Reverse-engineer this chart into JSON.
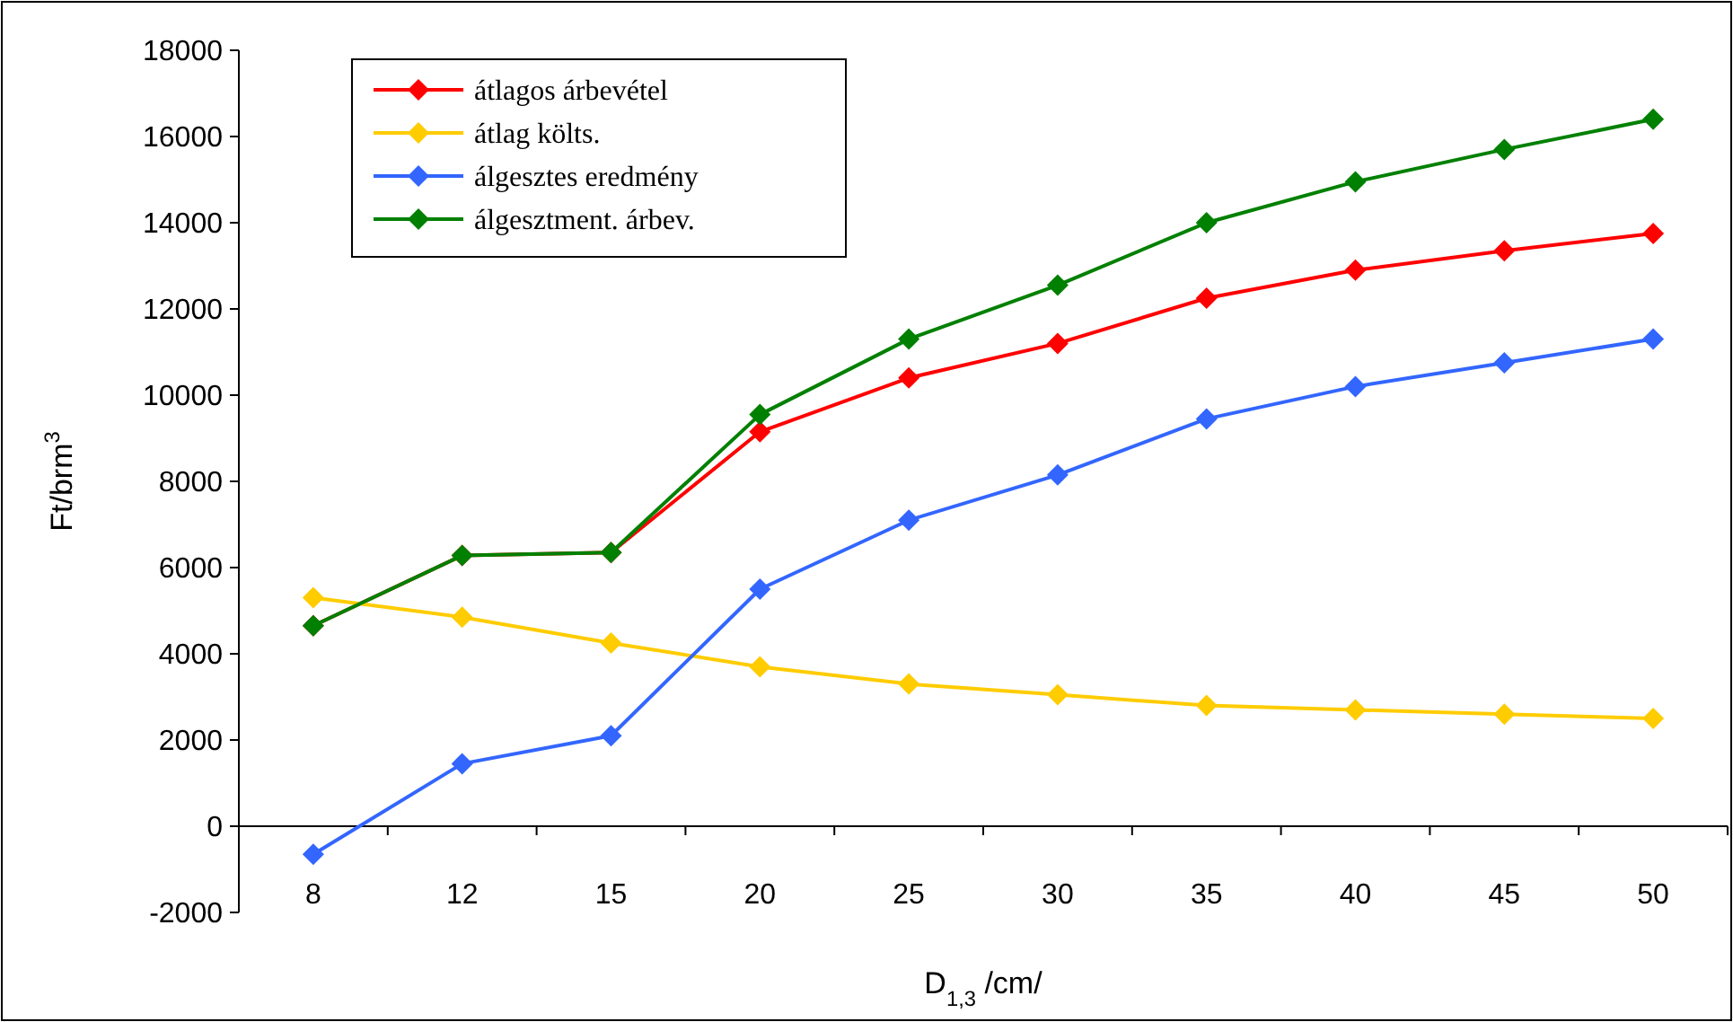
{
  "chart_data": {
    "type": "line",
    "xlabel": "D$_{1,3}$ /cm/",
    "ylabel": "Ft/brm$^{3}$",
    "categories": [
      "8",
      "12",
      "15",
      "20",
      "25",
      "30",
      "35",
      "40",
      "45",
      "50"
    ],
    "series": [
      {
        "name": "átlagos árbevétel",
        "color": "#ff0000",
        "values": [
          4650,
          6280,
          6350,
          9150,
          10400,
          11200,
          12250,
          12900,
          13350,
          13750
        ]
      },
      {
        "name": "átlag költs.",
        "color": "#ffcc00",
        "values": [
          5300,
          4850,
          4250,
          3700,
          3300,
          3050,
          2800,
          2700,
          2600,
          2500
        ]
      },
      {
        "name": "álgesztes eredmény",
        "color": "#3366ff",
        "values": [
          -650,
          1450,
          2100,
          5500,
          7100,
          8150,
          9450,
          10200,
          10750,
          11300
        ]
      },
      {
        "name": "álgesztment. árbev.",
        "color": "#008000",
        "values": [
          4650,
          6280,
          6350,
          9550,
          11300,
          12550,
          14000,
          14950,
          15700,
          16400
        ]
      }
    ],
    "ylim": [
      -2000,
      18000
    ],
    "yticks": [
      -2000,
      0,
      2000,
      4000,
      6000,
      8000,
      10000,
      12000,
      14000,
      16000,
      18000
    ],
    "legend": "top left",
    "marker": "diamond",
    "grid": false
  }
}
